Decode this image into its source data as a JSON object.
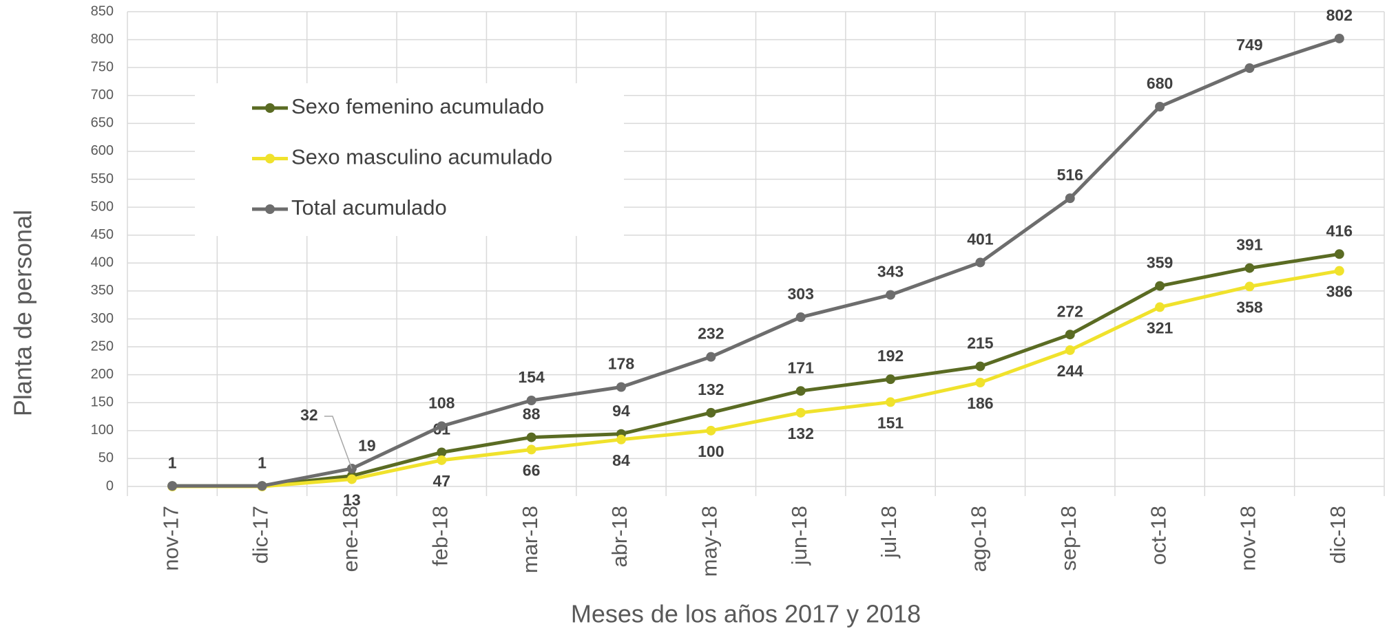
{
  "chart_data": {
    "type": "line",
    "x_label": "Meses  de los años 2017 y 2018",
    "y_label": "Planta de personal",
    "categories": [
      "nov-17",
      "dic-17",
      "ene-18",
      "feb-18",
      "mar-18",
      "abr-18",
      "may-18",
      "jun-18",
      "jul-18",
      "ago-18",
      "sep-18",
      "oct-18",
      "nov-18",
      "dic-18"
    ],
    "series": [
      {
        "name": "Sexo femenino acumulado",
        "color": "#5a6b23",
        "values": [
          1,
          1,
          19,
          61,
          88,
          94,
          132,
          171,
          192,
          215,
          272,
          359,
          391,
          416
        ],
        "value_labels": [
          null,
          null,
          19,
          61,
          88,
          94,
          132,
          171,
          192,
          215,
          272,
          359,
          391,
          416
        ]
      },
      {
        "name": "Sexo masculino acumulado",
        "color": "#f0e22c",
        "values": [
          0,
          0,
          13,
          47,
          66,
          84,
          100,
          132,
          151,
          186,
          244,
          321,
          358,
          386
        ],
        "value_labels": [
          null,
          null,
          13,
          47,
          66,
          84,
          100,
          132,
          151,
          186,
          244,
          321,
          358,
          386
        ]
      },
      {
        "name": "Total acumulado",
        "color": "#6d6d6d",
        "values": [
          1,
          1,
          32,
          108,
          154,
          178,
          232,
          303,
          343,
          401,
          516,
          680,
          749,
          802
        ],
        "value_labels": [
          1,
          1,
          32,
          108,
          154,
          178,
          232,
          303,
          343,
          401,
          516,
          680,
          749,
          802
        ]
      }
    ],
    "ylim": [
      0,
      850
    ],
    "yticks": [
      0,
      50,
      100,
      150,
      200,
      250,
      300,
      350,
      400,
      450,
      500,
      550,
      600,
      650,
      700,
      750,
      800,
      850
    ],
    "grid": true,
    "legend": "upper left"
  }
}
